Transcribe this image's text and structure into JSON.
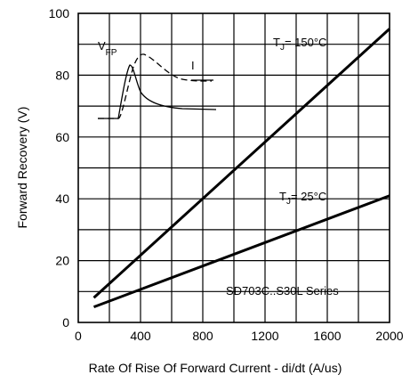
{
  "chart_data": {
    "type": "line",
    "xlabel": "Rate Of Rise Of Forward Current - di/dt (A/us)",
    "ylabel": "Forward Recovery (V)",
    "xlim": [
      0,
      2000
    ],
    "ylim": [
      0,
      100
    ],
    "x_ticks": [
      "0",
      "400",
      "800",
      "1200",
      "1600",
      "2000"
    ],
    "y_ticks": [
      "0",
      "20",
      "40",
      "60",
      "80",
      "100"
    ],
    "grid": true,
    "series": [
      {
        "name": "TJ = 150°C",
        "x": [
          100,
          2000
        ],
        "y": [
          8,
          95
        ]
      },
      {
        "name": "TJ = 25°C",
        "x": [
          100,
          2000
        ],
        "y": [
          5,
          41
        ]
      }
    ],
    "labels": {
      "series_150": {
        "prefix": "T",
        "sub": "J",
        "suffix": "= 150°C"
      },
      "series_25": {
        "prefix": "T",
        "sub": "J",
        "suffix": "= 25°C"
      },
      "series_name": "SD703C..S30L Series",
      "inset_vfp": {
        "main": "V",
        "sub": "FP"
      },
      "inset_i": "I"
    }
  }
}
